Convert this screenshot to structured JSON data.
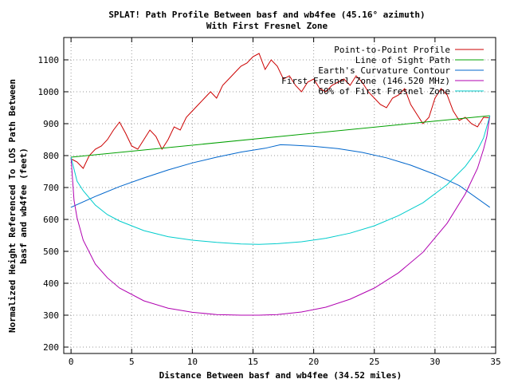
{
  "chart_data": {
    "type": "line",
    "title": "SPLAT! Path Profile Between basf and wb4fee (45.16° azimuth)",
    "subtitle": "With First Fresnel Zone",
    "xlabel": "Distance Between basf and wb4fee (34.52 miles)",
    "ylabel_line1": "Normalized Height Referenced To LOS Path Between",
    "ylabel_line2": "basf and wb4fee (feet)",
    "xlim": [
      -0.6,
      35
    ],
    "ylim": [
      180,
      1170
    ],
    "xticks": [
      0,
      5,
      10,
      15,
      20,
      25,
      30,
      35
    ],
    "yticks": [
      200,
      300,
      400,
      500,
      600,
      700,
      800,
      900,
      1000,
      1100
    ],
    "grid": true,
    "legend_position": "top-right",
    "series": [
      {
        "name": "Point-to-Point Profile",
        "color": "#cc0000",
        "x": [
          0,
          0.5,
          1,
          1.5,
          2,
          2.5,
          3,
          3.5,
          4,
          4.5,
          5,
          5.5,
          6,
          6.5,
          7,
          7.5,
          8,
          8.5,
          9,
          9.5,
          10,
          10.5,
          11,
          11.5,
          12,
          12.5,
          13,
          13.5,
          14,
          14.5,
          15,
          15.5,
          16,
          16.5,
          17,
          17.5,
          18,
          18.5,
          19,
          19.5,
          20,
          20.5,
          21,
          21.5,
          22,
          22.5,
          23,
          23.5,
          24,
          24.5,
          25,
          25.5,
          26,
          26.5,
          27,
          27.5,
          28,
          28.5,
          29,
          29.5,
          30,
          30.5,
          31,
          31.5,
          32,
          32.5,
          33,
          33.5,
          34,
          34.52
        ],
        "values": [
          790,
          780,
          760,
          800,
          820,
          830,
          850,
          880,
          905,
          870,
          830,
          820,
          850,
          880,
          860,
          820,
          850,
          890,
          880,
          920,
          940,
          960,
          980,
          1000,
          980,
          1020,
          1040,
          1060,
          1080,
          1090,
          1110,
          1120,
          1070,
          1100,
          1080,
          1040,
          1050,
          1020,
          1000,
          1030,
          1040,
          1010,
          1000,
          1020,
          1030,
          1040,
          1020,
          1050,
          1030,
          1000,
          980,
          960,
          950,
          980,
          990,
          1010,
          960,
          930,
          900,
          920,
          980,
          1010,
          990,
          940,
          910,
          920,
          900,
          890,
          920,
          918
        ]
      },
      {
        "name": "Line of Sight Path",
        "color": "#00a000",
        "x": [
          0,
          34.52
        ],
        "values": [
          795,
          925
        ]
      },
      {
        "name": "Earth's Curvature Contour",
        "color": "#0066cc",
        "x": [
          0,
          2,
          4,
          6,
          8,
          10,
          12,
          14,
          16,
          17.26,
          18,
          20,
          22,
          24,
          26,
          28,
          30,
          32,
          34.52
        ],
        "values": [
          638,
          672,
          703,
          730,
          755,
          777,
          795,
          811,
          823,
          834,
          833,
          829,
          822,
          810,
          793,
          770,
          741,
          706,
          638
        ]
      },
      {
        "name": "First Fresnel Zone (146.520 MHz)",
        "color": "#b000b0",
        "x": [
          0,
          0.25,
          0.5,
          1,
          2,
          3,
          4,
          6,
          8,
          10,
          12,
          14,
          15.5,
          17,
          19,
          21,
          23,
          25,
          27,
          29,
          31,
          32.5,
          33.5,
          34,
          34.27,
          34.52
        ],
        "values": [
          795,
          660,
          605,
          535,
          460,
          417,
          385,
          345,
          322,
          309,
          302,
          300,
          300,
          302,
          310,
          325,
          350,
          385,
          433,
          497,
          588,
          680,
          760,
          820,
          860,
          925
        ]
      },
      {
        "name": "60% of First Fresnel Zone",
        "color": "#00cccc",
        "x": [
          0,
          0.5,
          1,
          2,
          3,
          4,
          6,
          8,
          10,
          12,
          14,
          15.5,
          17,
          19,
          21,
          23,
          25,
          27,
          29,
          31,
          32.5,
          33.5,
          34,
          34.52
        ],
        "values": [
          795,
          720,
          690,
          645,
          615,
          595,
          565,
          546,
          535,
          528,
          523,
          522,
          524,
          530,
          541,
          557,
          580,
          612,
          652,
          709,
          766,
          818,
          855,
          925
        ]
      }
    ]
  }
}
